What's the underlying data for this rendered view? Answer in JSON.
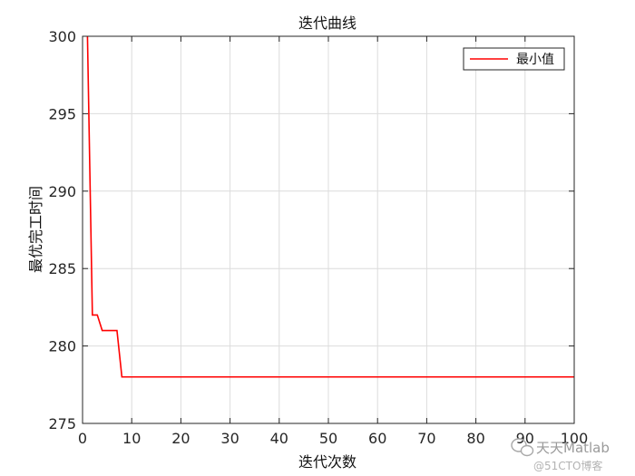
{
  "chart_data": {
    "type": "line",
    "title": "迭代曲线",
    "xlabel": "迭代次数",
    "ylabel": "最优完工时间",
    "xlim": [
      0,
      100
    ],
    "ylim": [
      275,
      300
    ],
    "xticks": [
      0,
      10,
      20,
      30,
      40,
      50,
      60,
      70,
      80,
      90,
      100
    ],
    "yticks": [
      275,
      280,
      285,
      290,
      295,
      300
    ],
    "grid": true,
    "legend_position": "top-right",
    "series": [
      {
        "name": "最小值",
        "color": "#ff0000",
        "x": [
          1,
          2,
          3,
          4,
          5,
          6,
          7,
          8,
          9,
          10,
          15,
          20,
          25,
          30,
          35,
          40,
          45,
          50,
          55,
          60,
          65,
          70,
          75,
          80,
          85,
          90,
          95,
          100
        ],
        "y": [
          300,
          282,
          282,
          281,
          281,
          281,
          281,
          278,
          278,
          278,
          278,
          278,
          278,
          278,
          278,
          278,
          278,
          278,
          278,
          278,
          278,
          278,
          278,
          278,
          278,
          278,
          278,
          278
        ]
      }
    ]
  },
  "watermark": {
    "brand": "天天Matlab",
    "sub": "@51CTO博客",
    "icon": "wechat-icon"
  }
}
